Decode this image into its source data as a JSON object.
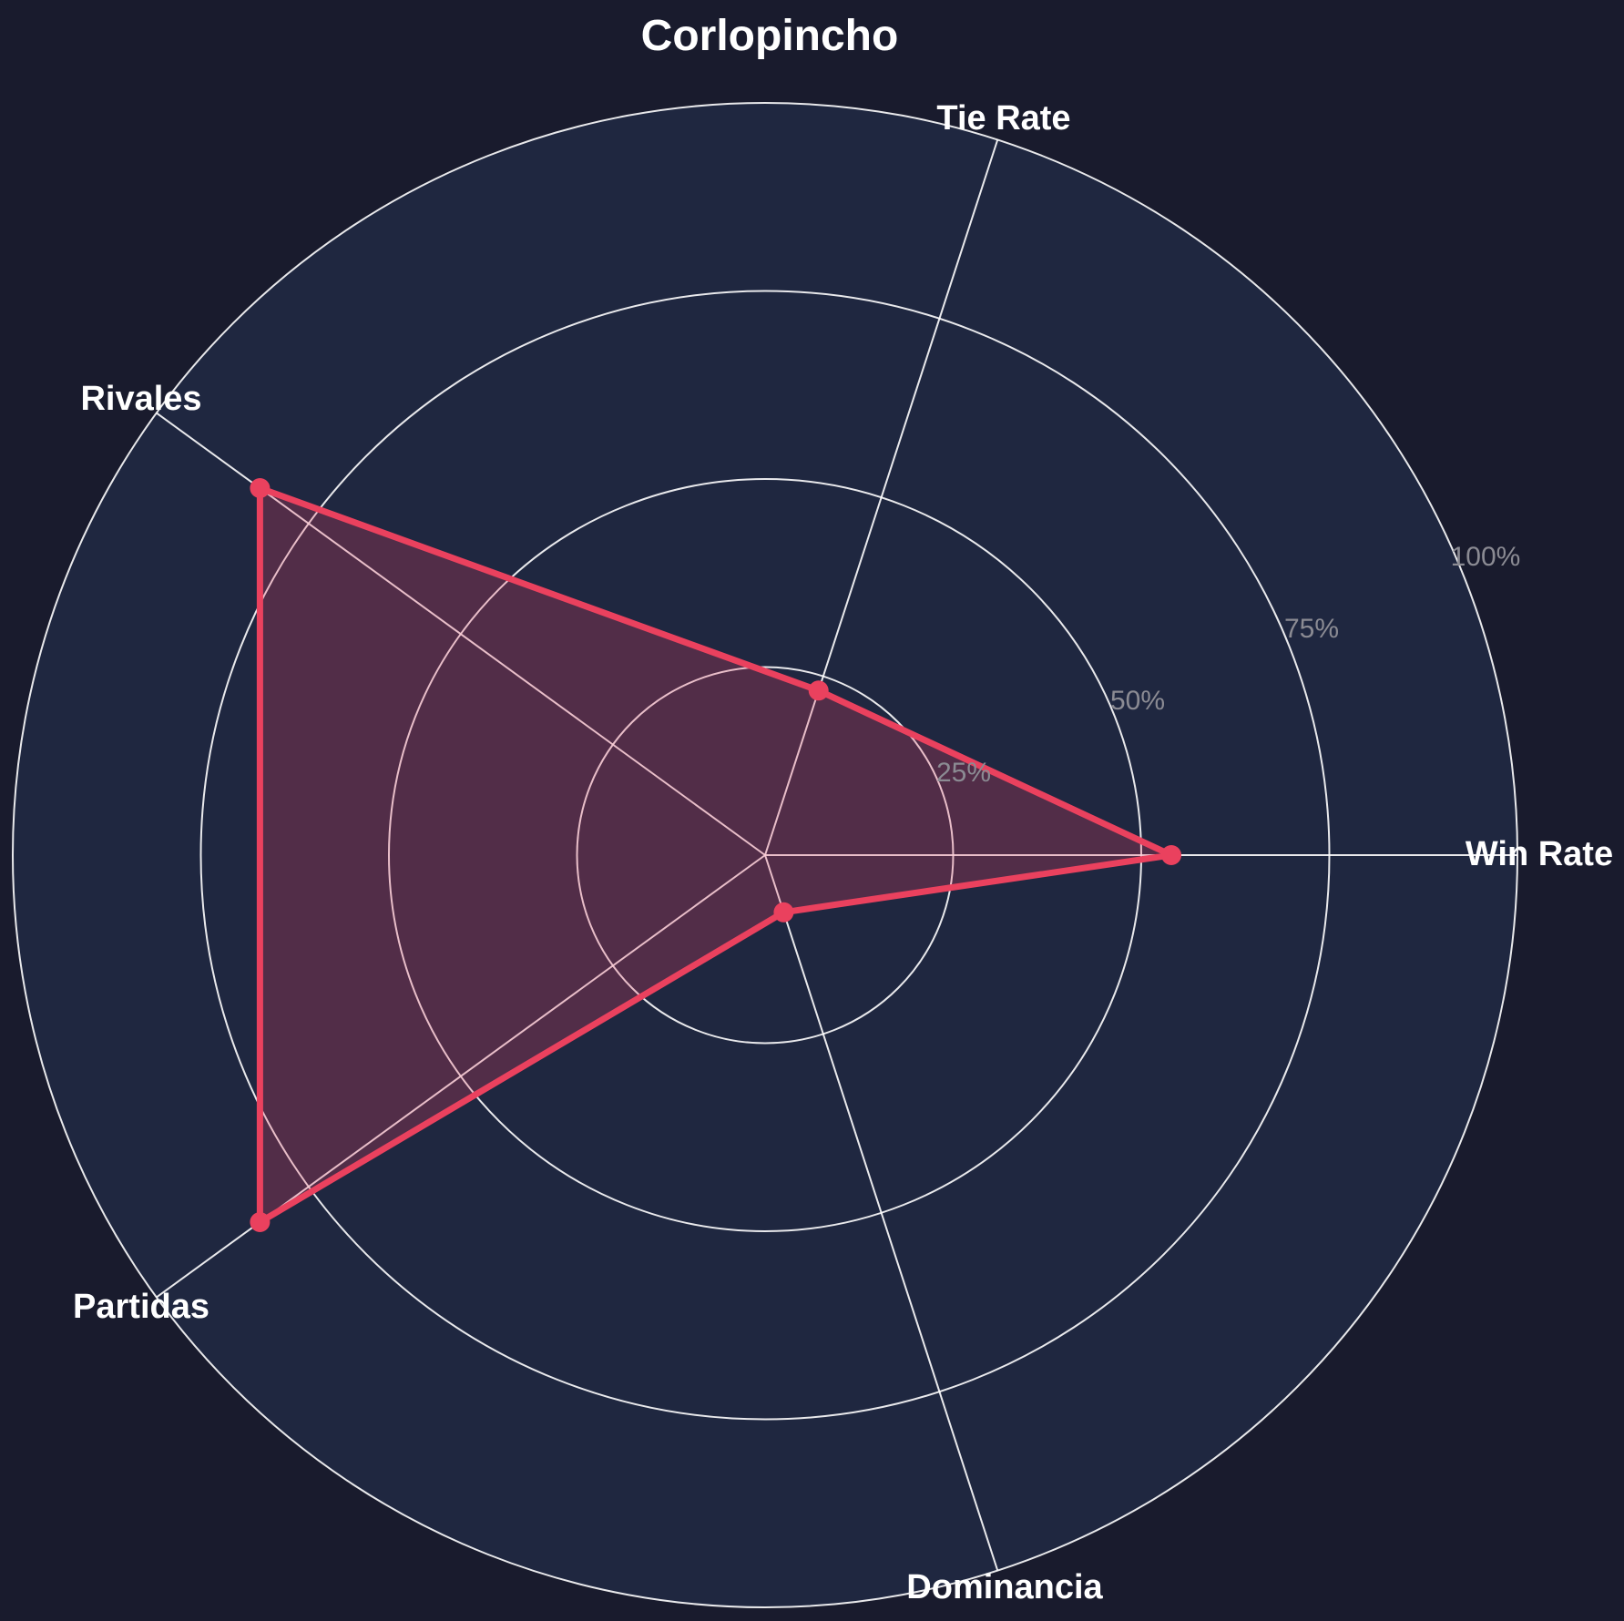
{
  "page": {
    "title": "Corlopincho"
  },
  "chart_data": {
    "type": "radar",
    "title": "Corlopincho",
    "categories": [
      "Win Rate",
      "Tie Rate",
      "Rivales",
      "Partidas",
      "Dominancia"
    ],
    "series": [
      {
        "name": "Corlopincho",
        "values": [
          54,
          23,
          83,
          83,
          8
        ]
      }
    ],
    "value_unit": "%",
    "axis_angles_deg": [
      0,
      72,
      144,
      216,
      288
    ],
    "radial_axis": {
      "tick_labels": [
        "25%",
        "50%",
        "75%",
        "100%"
      ],
      "tick_values": [
        25,
        50,
        75,
        100
      ],
      "range": [
        0,
        100
      ]
    },
    "grid": true,
    "legend_position": "none",
    "colors": {
      "series_line": "#ea415e",
      "series_fill": "#ea415e",
      "series_fill_opacity": 0.25,
      "grid_line": "#ffffff",
      "plot_area_bg": "#1f2740",
      "paper_bg": "#191b2d",
      "category_label": "#ffffff",
      "radial_tick_label": "#8b8b93"
    }
  }
}
